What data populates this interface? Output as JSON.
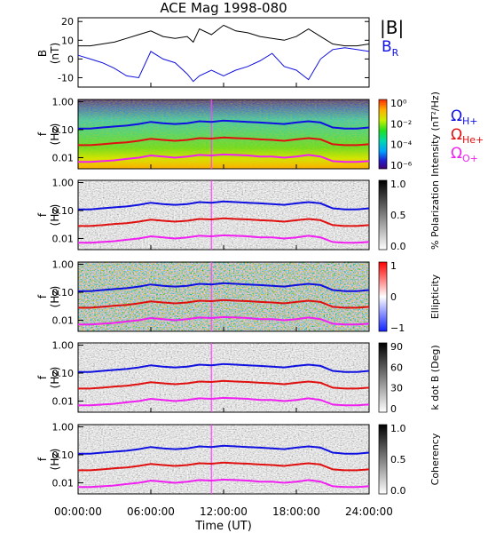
{
  "title": "ACE Mag 1998-080",
  "xlabel": "Time (UT)",
  "x_ticks": [
    "00:00:00",
    "06:00:00",
    "12:00:00",
    "18:00:00",
    "24:00:00"
  ],
  "colors": {
    "blue": "#1010e0",
    "red": "#e01010",
    "magenta": "#f020f0",
    "black": "#000000"
  },
  "legend": {
    "B": "|B|",
    "BR_main": "B",
    "BR_sub": "R",
    "OH_main": "Ω",
    "OH_sub": "H+",
    "OHe_main": "Ω",
    "OHe_sub": "He+",
    "OO_main": "Ω",
    "OO_sub": "O+"
  },
  "chart_data": [
    {
      "type": "line",
      "title": "ACE Mag 1998-080",
      "ylabel": "B (nT)",
      "ylim": [
        -15,
        22
      ],
      "y_ticks": [
        "20",
        "10",
        "0",
        "-10"
      ],
      "x_unit": "hours UT",
      "xlim": [
        0,
        24
      ],
      "series": [
        {
          "name": "|B|",
          "x": [
            0,
            1,
            2,
            3,
            4,
            5,
            6,
            7,
            8,
            9,
            9.5,
            10,
            11,
            12,
            13,
            14,
            15,
            16,
            17,
            18,
            19,
            20,
            21,
            22,
            23,
            24
          ],
          "y": [
            7,
            7,
            8,
            9,
            11,
            13,
            15,
            12,
            11,
            12,
            9,
            16,
            13,
            18,
            15,
            14,
            12,
            11,
            10,
            12,
            16,
            12,
            8,
            7,
            7,
            8
          ]
        },
        {
          "name": "B_R",
          "x": [
            0,
            1,
            2,
            3,
            4,
            5,
            6,
            7,
            8,
            9,
            9.5,
            10,
            11,
            12,
            13,
            14,
            15,
            16,
            17,
            18,
            19,
            20,
            21,
            22,
            23,
            24
          ],
          "y": [
            2,
            0,
            -2,
            -5,
            -9,
            -10,
            4,
            0,
            -2,
            -8,
            -12,
            -9,
            -6,
            -9,
            -6,
            -4,
            -1,
            3,
            -4,
            -6,
            -11,
            0,
            5,
            6,
            5,
            4
          ]
        }
      ]
    },
    {
      "type": "heatmap",
      "ylabel": "f (Hz)",
      "y_scale": "log",
      "y_ticks": [
        "1.00",
        "0.10",
        "0.01"
      ],
      "colorbar_label": "Intensity (nT²/Hz)",
      "colorbar_ticks": [
        "10⁰",
        "10⁻²",
        "10⁻⁴",
        "10⁻⁶"
      ]
    },
    {
      "type": "heatmap",
      "ylabel": "f (Hz)",
      "y_scale": "log",
      "y_ticks": [
        "1.00",
        "0.10",
        "0.01"
      ],
      "colorbar_label": "% Polarization",
      "colorbar_ticks": [
        "1.0",
        "0.5",
        "0.0"
      ]
    },
    {
      "type": "heatmap",
      "ylabel": "f (Hz)",
      "y_scale": "log",
      "y_ticks": [
        "1.00",
        "0.10",
        "0.01"
      ],
      "colorbar_label": "Ellipticity",
      "colorbar_ticks": [
        "1",
        "0",
        "−1"
      ]
    },
    {
      "type": "heatmap",
      "ylabel": "f (Hz)",
      "y_scale": "log",
      "y_ticks": [
        "1.00",
        "0.10",
        "0.01"
      ],
      "colorbar_label": "k dot B (Deg)",
      "colorbar_ticks": [
        "90",
        "60",
        "30",
        "0"
      ]
    },
    {
      "type": "heatmap",
      "ylabel": "f (Hz)",
      "y_scale": "log",
      "y_ticks": [
        "1.00",
        "0.10",
        "0.01"
      ],
      "colorbar_label": "Coherency",
      "colorbar_ticks": [
        "1.0",
        "0.5",
        "0.0"
      ]
    }
  ],
  "gyro_lines": {
    "x": [
      0,
      1,
      2,
      3,
      4,
      5,
      6,
      7,
      8,
      9,
      10,
      11,
      12,
      13,
      14,
      15,
      16,
      17,
      18,
      19,
      20,
      21,
      22,
      23,
      24
    ],
    "H+": [
      0.11,
      0.11,
      0.12,
      0.13,
      0.14,
      0.16,
      0.19,
      0.17,
      0.16,
      0.17,
      0.2,
      0.19,
      0.21,
      0.2,
      0.19,
      0.18,
      0.17,
      0.16,
      0.18,
      0.2,
      0.18,
      0.12,
      0.11,
      0.11,
      0.12
    ],
    "He+": [
      0.028,
      0.028,
      0.03,
      0.033,
      0.035,
      0.04,
      0.047,
      0.043,
      0.04,
      0.043,
      0.05,
      0.048,
      0.053,
      0.05,
      0.048,
      0.045,
      0.043,
      0.04,
      0.045,
      0.05,
      0.045,
      0.03,
      0.028,
      0.028,
      0.03
    ],
    "O+": [
      0.007,
      0.007,
      0.0075,
      0.008,
      0.009,
      0.01,
      0.012,
      0.011,
      0.01,
      0.011,
      0.0125,
      0.012,
      0.013,
      0.0125,
      0.012,
      0.011,
      0.011,
      0.01,
      0.011,
      0.0125,
      0.011,
      0.0075,
      0.007,
      0.007,
      0.0075
    ]
  }
}
